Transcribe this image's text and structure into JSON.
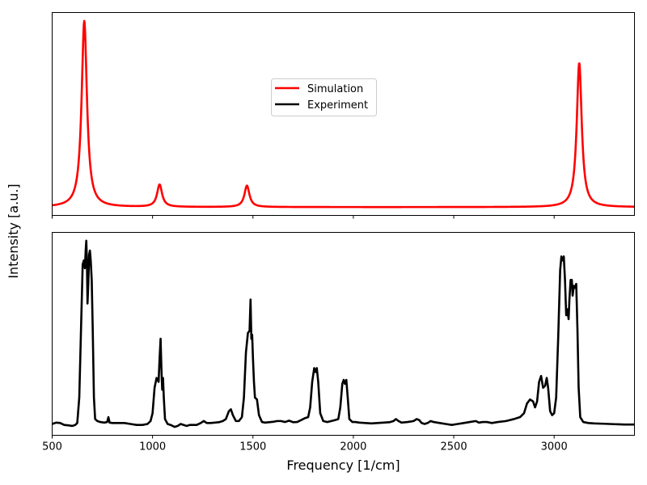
{
  "chart_data": [
    {
      "type": "line",
      "panel": "top",
      "xlim": [
        500,
        3400
      ],
      "y_ticks_visible": false,
      "x_tick_labels_visible": false,
      "xticks": [
        500,
        1000,
        1500,
        2000,
        2500,
        3000
      ],
      "grid": false,
      "legend": {
        "placement": "center",
        "entries": [
          "Simulation",
          "Experiment"
        ]
      },
      "series": [
        {
          "name": "Simulation",
          "color": "#ff0000",
          "model": "lorentzian",
          "baseline": 0.004,
          "peaks": [
            {
              "center": 660,
              "height": 1.0,
              "hwhm": 16
            },
            {
              "center": 1035,
              "height": 0.12,
              "hwhm": 15
            },
            {
              "center": 1470,
              "height": 0.115,
              "hwhm": 15
            },
            {
              "center": 3125,
              "height": 0.775,
              "hwhm": 15
            }
          ]
        }
      ]
    },
    {
      "type": "line",
      "panel": "bottom",
      "xlim": [
        500,
        3400
      ],
      "y_ticks_visible": false,
      "xticks": [
        500,
        1000,
        1500,
        2000,
        2500,
        3000
      ],
      "xtick_labels": [
        "500",
        "1000",
        "1500",
        "2000",
        "2500",
        "3000"
      ],
      "xlabel": "Frequency [1/cm]",
      "grid": false,
      "series": [
        {
          "name": "Experiment",
          "color": "#000000",
          "points": [
            [
              500,
              0.065
            ],
            [
              520,
              0.072
            ],
            [
              540,
              0.07
            ],
            [
              560,
              0.06
            ],
            [
              580,
              0.058
            ],
            [
              600,
              0.055
            ],
            [
              615,
              0.06
            ],
            [
              625,
              0.07
            ],
            [
              635,
              0.2
            ],
            [
              645,
              0.6
            ],
            [
              652,
              0.88
            ],
            [
              658,
              0.9
            ],
            [
              663,
              0.86
            ],
            [
              667,
              0.95
            ],
            [
              670,
              1.0
            ],
            [
              673,
              0.9
            ],
            [
              676,
              0.68
            ],
            [
              680,
              0.78
            ],
            [
              684,
              0.93
            ],
            [
              688,
              0.95
            ],
            [
              692,
              0.9
            ],
            [
              697,
              0.8
            ],
            [
              702,
              0.55
            ],
            [
              708,
              0.2
            ],
            [
              714,
              0.09
            ],
            [
              725,
              0.08
            ],
            [
              740,
              0.075
            ],
            [
              760,
              0.072
            ],
            [
              774,
              0.075
            ],
            [
              780,
              0.1
            ],
            [
              786,
              0.072
            ],
            [
              800,
              0.07
            ],
            [
              830,
              0.07
            ],
            [
              860,
              0.07
            ],
            [
              890,
              0.065
            ],
            [
              920,
              0.06
            ],
            [
              950,
              0.06
            ],
            [
              975,
              0.065
            ],
            [
              990,
              0.08
            ],
            [
              1000,
              0.12
            ],
            [
              1010,
              0.25
            ],
            [
              1020,
              0.3
            ],
            [
              1030,
              0.28
            ],
            [
              1035,
              0.4
            ],
            [
              1040,
              0.5
            ],
            [
              1044,
              0.35
            ],
            [
              1048,
              0.24
            ],
            [
              1052,
              0.3
            ],
            [
              1056,
              0.2
            ],
            [
              1062,
              0.09
            ],
            [
              1075,
              0.065
            ],
            [
              1090,
              0.06
            ],
            [
              1110,
              0.05
            ],
            [
              1125,
              0.055
            ],
            [
              1140,
              0.065
            ],
            [
              1155,
              0.06
            ],
            [
              1170,
              0.055
            ],
            [
              1185,
              0.06
            ],
            [
              1200,
              0.06
            ],
            [
              1220,
              0.06
            ],
            [
              1240,
              0.07
            ],
            [
              1255,
              0.08
            ],
            [
              1270,
              0.07
            ],
            [
              1290,
              0.07
            ],
            [
              1310,
              0.072
            ],
            [
              1330,
              0.074
            ],
            [
              1350,
              0.08
            ],
            [
              1365,
              0.09
            ],
            [
              1380,
              0.13
            ],
            [
              1390,
              0.14
            ],
            [
              1400,
              0.11
            ],
            [
              1415,
              0.08
            ],
            [
              1430,
              0.08
            ],
            [
              1445,
              0.1
            ],
            [
              1455,
              0.2
            ],
            [
              1465,
              0.43
            ],
            [
              1475,
              0.53
            ],
            [
              1483,
              0.54
            ],
            [
              1488,
              0.7
            ],
            [
              1492,
              0.5
            ],
            [
              1496,
              0.52
            ],
            [
              1500,
              0.4
            ],
            [
              1505,
              0.28
            ],
            [
              1510,
              0.2
            ],
            [
              1520,
              0.19
            ],
            [
              1530,
              0.11
            ],
            [
              1545,
              0.075
            ],
            [
              1560,
              0.072
            ],
            [
              1580,
              0.074
            ],
            [
              1600,
              0.076
            ],
            [
              1620,
              0.08
            ],
            [
              1640,
              0.08
            ],
            [
              1660,
              0.075
            ],
            [
              1680,
              0.082
            ],
            [
              1700,
              0.074
            ],
            [
              1720,
              0.075
            ],
            [
              1740,
              0.085
            ],
            [
              1760,
              0.095
            ],
            [
              1775,
              0.1
            ],
            [
              1785,
              0.15
            ],
            [
              1795,
              0.28
            ],
            [
              1805,
              0.35
            ],
            [
              1812,
              0.33
            ],
            [
              1818,
              0.35
            ],
            [
              1825,
              0.28
            ],
            [
              1835,
              0.12
            ],
            [
              1850,
              0.08
            ],
            [
              1870,
              0.075
            ],
            [
              1890,
              0.08
            ],
            [
              1910,
              0.085
            ],
            [
              1925,
              0.09
            ],
            [
              1935,
              0.15
            ],
            [
              1945,
              0.27
            ],
            [
              1952,
              0.29
            ],
            [
              1958,
              0.27
            ],
            [
              1965,
              0.29
            ],
            [
              1972,
              0.2
            ],
            [
              1980,
              0.09
            ],
            [
              1995,
              0.075
            ],
            [
              2010,
              0.075
            ],
            [
              2030,
              0.072
            ],
            [
              2060,
              0.07
            ],
            [
              2090,
              0.068
            ],
            [
              2120,
              0.07
            ],
            [
              2150,
              0.072
            ],
            [
              2180,
              0.074
            ],
            [
              2200,
              0.08
            ],
            [
              2212,
              0.09
            ],
            [
              2225,
              0.08
            ],
            [
              2240,
              0.072
            ],
            [
              2270,
              0.075
            ],
            [
              2300,
              0.08
            ],
            [
              2315,
              0.09
            ],
            [
              2328,
              0.085
            ],
            [
              2340,
              0.07
            ],
            [
              2355,
              0.065
            ],
            [
              2370,
              0.07
            ],
            [
              2385,
              0.08
            ],
            [
              2400,
              0.075
            ],
            [
              2430,
              0.07
            ],
            [
              2460,
              0.065
            ],
            [
              2490,
              0.06
            ],
            [
              2520,
              0.065
            ],
            [
              2550,
              0.07
            ],
            [
              2580,
              0.075
            ],
            [
              2610,
              0.08
            ],
            [
              2625,
              0.072
            ],
            [
              2645,
              0.075
            ],
            [
              2665,
              0.075
            ],
            [
              2690,
              0.07
            ],
            [
              2720,
              0.075
            ],
            [
              2760,
              0.08
            ],
            [
              2800,
              0.09
            ],
            [
              2830,
              0.1
            ],
            [
              2850,
              0.12
            ],
            [
              2865,
              0.17
            ],
            [
              2880,
              0.19
            ],
            [
              2895,
              0.18
            ],
            [
              2905,
              0.15
            ],
            [
              2915,
              0.18
            ],
            [
              2925,
              0.28
            ],
            [
              2935,
              0.31
            ],
            [
              2945,
              0.25
            ],
            [
              2955,
              0.26
            ],
            [
              2963,
              0.3
            ],
            [
              2970,
              0.25
            ],
            [
              2980,
              0.13
            ],
            [
              2990,
              0.11
            ],
            [
              3000,
              0.12
            ],
            [
              3010,
              0.2
            ],
            [
              3020,
              0.5
            ],
            [
              3030,
              0.85
            ],
            [
              3036,
              0.92
            ],
            [
              3042,
              0.9
            ],
            [
              3048,
              0.92
            ],
            [
              3054,
              0.8
            ],
            [
              3060,
              0.62
            ],
            [
              3066,
              0.65
            ],
            [
              3072,
              0.6
            ],
            [
              3076,
              0.7
            ],
            [
              3082,
              0.8
            ],
            [
              3088,
              0.8
            ],
            [
              3092,
              0.72
            ],
            [
              3098,
              0.77
            ],
            [
              3104,
              0.76
            ],
            [
              3110,
              0.78
            ],
            [
              3116,
              0.55
            ],
            [
              3122,
              0.25
            ],
            [
              3130,
              0.1
            ],
            [
              3145,
              0.075
            ],
            [
              3170,
              0.07
            ],
            [
              3200,
              0.068
            ],
            [
              3250,
              0.066
            ],
            [
              3300,
              0.064
            ],
            [
              3350,
              0.062
            ],
            [
              3400,
              0.062
            ]
          ]
        }
      ]
    }
  ],
  "figure": {
    "ylabel": "Intensity [a.u.]"
  }
}
